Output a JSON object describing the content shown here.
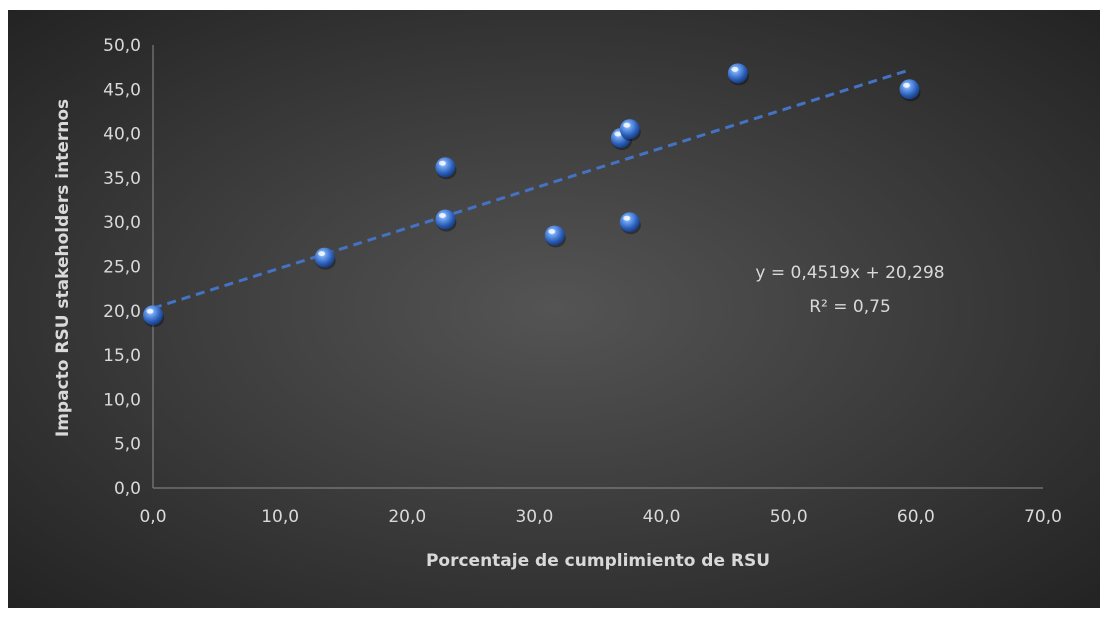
{
  "chart_data": {
    "type": "scatter",
    "title": "",
    "xlabel": "Porcentaje de cumplimiento de RSU",
    "ylabel": "Impacto RSU stakeholders internos",
    "xlim": [
      0,
      70
    ],
    "ylim": [
      0,
      50
    ],
    "x_ticks": [
      "0,0",
      "10,0",
      "20,0",
      "30,0",
      "40,0",
      "50,0",
      "60,0",
      "70,0"
    ],
    "y_ticks": [
      "0,0",
      "5,0",
      "10,0",
      "15,0",
      "20,0",
      "25,0",
      "30,0",
      "35,0",
      "40,0",
      "45,0",
      "50,0"
    ],
    "grid": false,
    "series": [
      {
        "points": [
          {
            "x": 0.0,
            "y": 19.5
          },
          {
            "x": 13.5,
            "y": 26.0
          },
          {
            "x": 23.0,
            "y": 36.2
          },
          {
            "x": 23.0,
            "y": 30.3
          },
          {
            "x": 31.6,
            "y": 28.5
          },
          {
            "x": 36.8,
            "y": 39.5
          },
          {
            "x": 37.5,
            "y": 40.5
          },
          {
            "x": 37.5,
            "y": 30.0
          },
          {
            "x": 46.0,
            "y": 46.8
          },
          {
            "x": 59.5,
            "y": 45.0
          }
        ],
        "color": "#4a86e0"
      }
    ],
    "trendline": {
      "type": "linear",
      "slope": 0.4519,
      "intercept": 20.298,
      "x_range": [
        0,
        59.5
      ],
      "color": "#4472c4",
      "equation_label": "y = 0,4519x + 20,298",
      "r2_label": "R² = 0,75"
    }
  }
}
